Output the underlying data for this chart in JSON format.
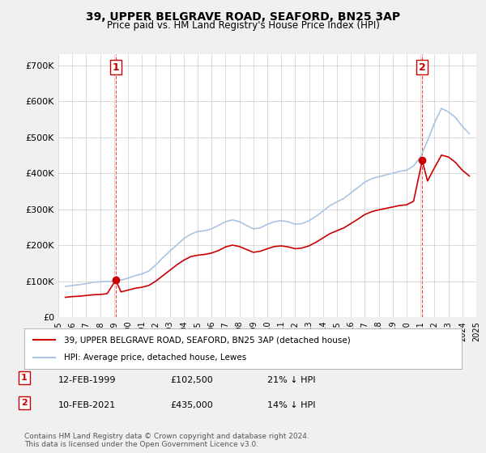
{
  "title": "39, UPPER BELGRAVE ROAD, SEAFORD, BN25 3AP",
  "subtitle": "Price paid vs. HM Land Registry's House Price Index (HPI)",
  "ylabel_values": [
    "£0",
    "£100K",
    "£200K",
    "£300K",
    "£400K",
    "£500K",
    "£600K",
    "£700K"
  ],
  "ylim": [
    0,
    730000
  ],
  "yticks": [
    0,
    100000,
    200000,
    300000,
    400000,
    500000,
    600000,
    700000
  ],
  "background_color": "#f0f0f0",
  "plot_bg_color": "#ffffff",
  "hpi_color": "#aac4e0",
  "price_color": "#cc0000",
  "marker1_color": "#cc0000",
  "marker2_color": "#cc0000",
  "vline_color": "#ff4444",
  "sale1_x": 1999.12,
  "sale1_y": 102500,
  "sale1_label": "1",
  "sale2_x": 2021.12,
  "sale2_y": 435000,
  "sale2_label": "2",
  "legend_entry1": "39, UPPER BELGRAVE ROAD, SEAFORD, BN25 3AP (detached house)",
  "legend_entry2": "HPI: Average price, detached house, Lewes",
  "table_rows": [
    [
      "1",
      "12-FEB-1999",
      "£102,500",
      "21% ↓ HPI"
    ],
    [
      "2",
      "10-FEB-2021",
      "£435,000",
      "14% ↓ HPI"
    ]
  ],
  "footnote": "Contains HM Land Registry data © Crown copyright and database right 2024.\nThis data is licensed under the Open Government Licence v3.0.",
  "hpi_data": {
    "years": [
      1995.5,
      1996.0,
      1996.5,
      1997.0,
      1997.5,
      1998.0,
      1998.5,
      1999.0,
      1999.5,
      2000.0,
      2000.5,
      2001.0,
      2001.5,
      2002.0,
      2002.5,
      2003.0,
      2003.5,
      2004.0,
      2004.5,
      2005.0,
      2005.5,
      2006.0,
      2006.5,
      2007.0,
      2007.5,
      2008.0,
      2008.5,
      2009.0,
      2009.5,
      2010.0,
      2010.5,
      2011.0,
      2011.5,
      2012.0,
      2012.5,
      2013.0,
      2013.5,
      2014.0,
      2014.5,
      2015.0,
      2015.5,
      2016.0,
      2016.5,
      2017.0,
      2017.5,
      2018.0,
      2018.5,
      2019.0,
      2019.5,
      2020.0,
      2020.5,
      2021.0,
      2021.5,
      2022.0,
      2022.5,
      2023.0,
      2023.5,
      2024.0,
      2024.5
    ],
    "values": [
      85000,
      88000,
      90000,
      93000,
      97000,
      98000,
      99000,
      100000,
      103000,
      108000,
      115000,
      120000,
      128000,
      145000,
      165000,
      183000,
      200000,
      218000,
      230000,
      238000,
      240000,
      245000,
      255000,
      265000,
      270000,
      265000,
      255000,
      245000,
      248000,
      258000,
      265000,
      268000,
      265000,
      258000,
      260000,
      268000,
      280000,
      295000,
      310000,
      320000,
      330000,
      345000,
      360000,
      375000,
      385000,
      390000,
      395000,
      400000,
      405000,
      408000,
      420000,
      445000,
      490000,
      540000,
      580000,
      570000,
      555000,
      530000,
      510000
    ]
  },
  "price_data": {
    "years": [
      1995.5,
      1996.0,
      1996.5,
      1997.0,
      1997.5,
      1998.0,
      1998.5,
      1999.12,
      1999.5,
      2000.0,
      2000.5,
      2001.0,
      2001.5,
      2002.0,
      2002.5,
      2003.0,
      2003.5,
      2004.0,
      2004.5,
      2005.0,
      2005.5,
      2006.0,
      2006.5,
      2007.0,
      2007.5,
      2008.0,
      2008.5,
      2009.0,
      2009.5,
      2010.0,
      2010.5,
      2011.0,
      2011.5,
      2012.0,
      2012.5,
      2013.0,
      2013.5,
      2014.0,
      2014.5,
      2015.0,
      2015.5,
      2016.0,
      2016.5,
      2017.0,
      2017.5,
      2018.0,
      2018.5,
      2019.0,
      2019.5,
      2020.0,
      2020.5,
      2021.12,
      2021.5,
      2022.0,
      2022.5,
      2023.0,
      2023.5,
      2024.0,
      2024.5
    ],
    "values": [
      55000,
      57000,
      58000,
      60000,
      62000,
      63000,
      65000,
      102500,
      70000,
      75000,
      80000,
      83000,
      88000,
      100000,
      115000,
      130000,
      145000,
      158000,
      168000,
      172000,
      174000,
      178000,
      185000,
      195000,
      200000,
      196000,
      188000,
      180000,
      183000,
      190000,
      196000,
      198000,
      195000,
      190000,
      192000,
      198000,
      208000,
      220000,
      232000,
      240000,
      248000,
      260000,
      272000,
      285000,
      293000,
      298000,
      302000,
      306000,
      310000,
      312000,
      322000,
      435000,
      378000,
      415000,
      450000,
      445000,
      430000,
      408000,
      392000
    ]
  },
  "xtick_years": [
    1995,
    1996,
    1997,
    1998,
    1999,
    2000,
    2001,
    2002,
    2003,
    2004,
    2005,
    2006,
    2007,
    2008,
    2009,
    2010,
    2011,
    2012,
    2013,
    2014,
    2015,
    2016,
    2017,
    2018,
    2019,
    2020,
    2021,
    2022,
    2023,
    2024,
    2025
  ]
}
